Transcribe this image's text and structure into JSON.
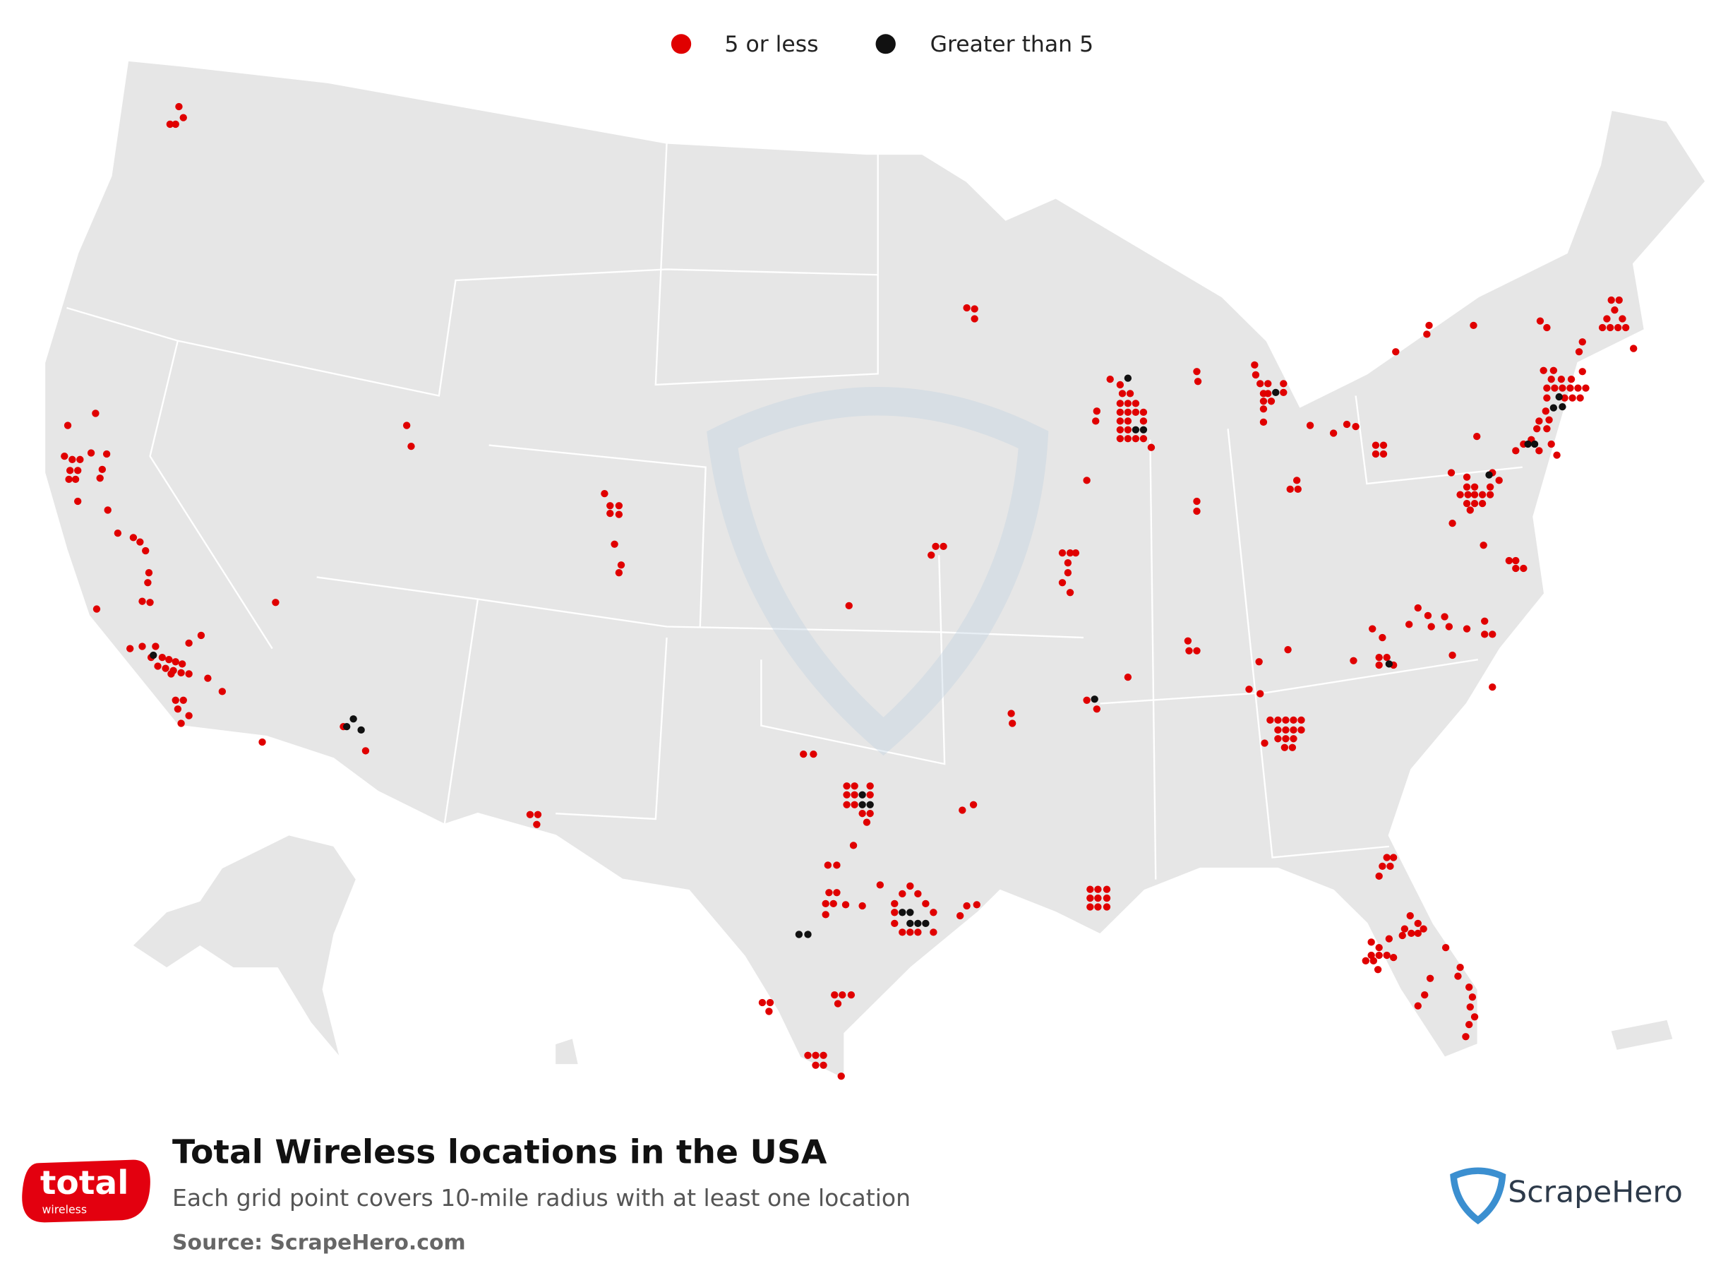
{
  "legend": [
    {
      "label": "5 or less",
      "color": "#e00000"
    },
    {
      "label": "Greater than 5",
      "color": "#111111"
    }
  ],
  "title": "Total Wireless locations in the USA",
  "subtitle": "Each grid point covers 10-mile radius with at least one location",
  "source": "Source: ScrapeHero.com",
  "logo": {
    "brand": "total",
    "tagline": "wireless"
  },
  "publisher": "ScrapeHero"
}
